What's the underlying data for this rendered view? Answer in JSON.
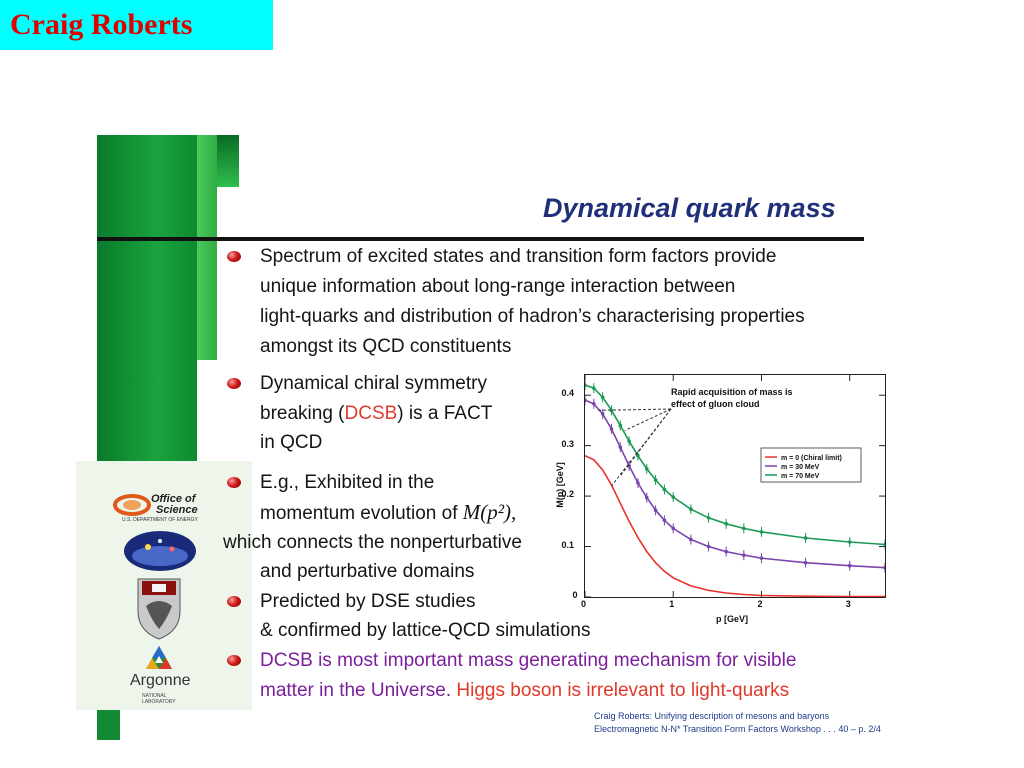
{
  "header": {
    "author": "Craig Roberts"
  },
  "slide": {
    "title": "Dynamical quark mass",
    "bullet1": {
      "line1": "Spectrum of excited states and transition form factors provide",
      "line2": "unique information about long-range interaction between",
      "line3": "light-quarks and distribution of hadron’s characterising properties",
      "line4": "amongst its QCD constituents"
    },
    "bullet2": {
      "line1": "Dynamical chiral symmetry",
      "line2_pre": "breaking (",
      "line2_red": "DCSB",
      "line2_post": ") is a FACT",
      "line3": "in QCD"
    },
    "bullet3": {
      "line1": "E.g., Exhibited in the",
      "line2": "momentum evolution of ",
      "line2_math": "M(p²),",
      "line3": "which connects the nonperturbative",
      "line4": "and perturbative domains"
    },
    "bullet4": {
      "line1": "Predicted by DSE studies",
      "line2": "& confirmed by lattice-QCD simulations"
    },
    "bullet5": {
      "line1": "DCSB is most important mass generating mechanism for visible",
      "line2_purple": "matter in the Universe.",
      "line2_red": "Higgs boson is irrelevant to light-quarks"
    },
    "footer": {
      "line1": "Craig Roberts: Unifying description of mesons and baryons",
      "line2": "Electromagnetic N-N* Transition Form Factors Workshop . . . 40   – p. 2/4"
    }
  },
  "logos": {
    "office_of_science_1": "Office of",
    "office_of_science_2": "Science",
    "office_of_science_3": "U.S. DEPARTMENT OF ENERGY",
    "argonne": "Argonne",
    "argonne_sub": "NATIONAL LABORATORY"
  },
  "chart_data": {
    "type": "line",
    "xlabel": "p [GeV]",
    "ylabel": "M(p) [GeV]",
    "xlim": [
      0,
      3.4
    ],
    "ylim": [
      0,
      0.44
    ],
    "x_ticks": [
      "0",
      "1",
      "2",
      "3"
    ],
    "y_ticks": [
      "0",
      "0.1",
      "0.2",
      "0.3",
      "0.4"
    ],
    "annotation": "Rapid acquisition of mass is effect of gluon cloud",
    "legend_position": "top-right",
    "series": [
      {
        "name": "m = 0 (Chiral limit)",
        "color": "#e8302a",
        "x": [
          0,
          0.1,
          0.2,
          0.3,
          0.4,
          0.5,
          0.6,
          0.7,
          0.8,
          0.9,
          1.0,
          1.2,
          1.4,
          1.6,
          1.8,
          2.0,
          2.5,
          3.0,
          3.4
        ],
        "values": [
          0.28,
          0.272,
          0.252,
          0.222,
          0.186,
          0.15,
          0.118,
          0.09,
          0.068,
          0.051,
          0.038,
          0.022,
          0.013,
          0.008,
          0.005,
          0.003,
          0.0015,
          0.001,
          0.001
        ]
      },
      {
        "name": "m = 30 MeV",
        "color": "#7a44ad",
        "x": [
          0,
          0.1,
          0.2,
          0.3,
          0.4,
          0.5,
          0.6,
          0.7,
          0.8,
          0.9,
          1.0,
          1.2,
          1.4,
          1.6,
          1.8,
          2.0,
          2.5,
          3.0,
          3.4
        ],
        "values": [
          0.39,
          0.383,
          0.363,
          0.333,
          0.297,
          0.26,
          0.226,
          0.197,
          0.172,
          0.152,
          0.136,
          0.114,
          0.1,
          0.09,
          0.083,
          0.077,
          0.068,
          0.062,
          0.058
        ]
      },
      {
        "name": "m = 70 MeV",
        "color": "#1a9a55",
        "x": [
          0,
          0.1,
          0.2,
          0.3,
          0.4,
          0.5,
          0.6,
          0.7,
          0.8,
          0.9,
          1.0,
          1.2,
          1.4,
          1.6,
          1.8,
          2.0,
          2.5,
          3.0,
          3.4
        ],
        "values": [
          0.42,
          0.414,
          0.396,
          0.37,
          0.34,
          0.309,
          0.28,
          0.254,
          0.232,
          0.213,
          0.198,
          0.174,
          0.157,
          0.145,
          0.136,
          0.129,
          0.117,
          0.109,
          0.104
        ]
      }
    ]
  }
}
